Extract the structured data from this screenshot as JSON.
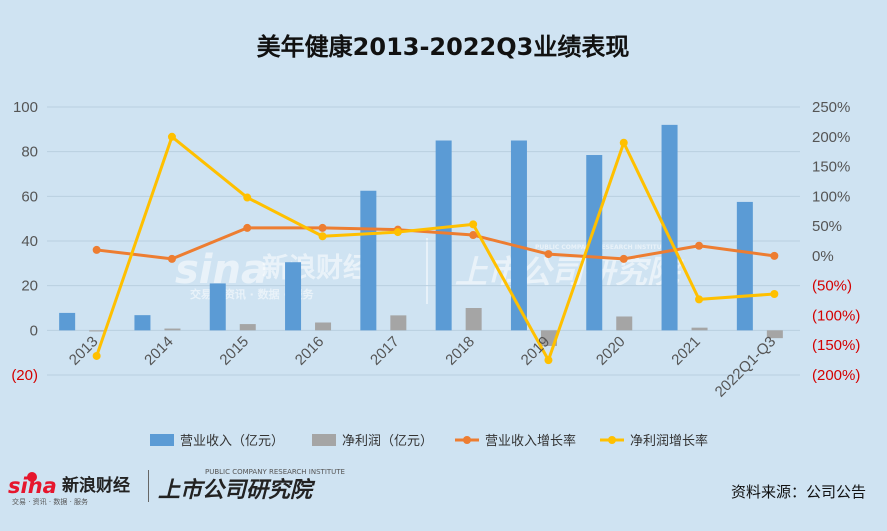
{
  "title": "美年健康2013-2022Q3业绩表现",
  "source": "资料来源：公司公告",
  "watermark": {
    "sina_cn": "新浪财经",
    "sina_sub": "交易 · 资讯 · 数据 · 服务",
    "research": "上市公司研究院",
    "research_en": "PUBLIC COMPANY RESEARCH INSTITUTE"
  },
  "colors": {
    "background": "#cfe3f2",
    "revenue": "#5b9bd5",
    "profit": "#a5a5a5",
    "revenue_growth": "#ed7d31",
    "profit_growth": "#ffc000",
    "negative_tick": "#d40000"
  },
  "chart_data": {
    "type": "bar",
    "categories": [
      "2013",
      "2014",
      "2015",
      "2016",
      "2017",
      "2018",
      "2019",
      "2020",
      "2021",
      "2022Q1-Q3"
    ],
    "left_axis": {
      "ylim": [
        -20,
        100
      ],
      "ticks": [
        -20,
        0,
        20,
        40,
        60,
        80,
        100
      ],
      "tick_labels": [
        "(20)",
        "0",
        "20",
        "40",
        "60",
        "80",
        "100"
      ]
    },
    "right_axis": {
      "ylim": [
        -200,
        250
      ],
      "ticks": [
        -200,
        -150,
        -100,
        -50,
        0,
        50,
        100,
        150,
        200,
        250
      ],
      "tick_labels": [
        "(200%)",
        "(150%)",
        "(100%)",
        "(50%)",
        "0%",
        "50%",
        "100%",
        "150%",
        "200%",
        "250%"
      ]
    },
    "grid": true,
    "legend_position": "bottom",
    "series": [
      {
        "name": "营业收入（亿元）",
        "type": "bar",
        "axis": "left",
        "color": "#5b9bd5",
        "values": [
          7.8,
          6.8,
          21,
          30.5,
          62.5,
          85,
          85,
          78.5,
          92,
          57.5
        ]
      },
      {
        "name": "净利润（亿元）",
        "type": "bar",
        "axis": "left",
        "color": "#a5a5a5",
        "values": [
          -0.5,
          0.8,
          2.8,
          3.5,
          6.7,
          10,
          -7,
          6.2,
          1.2,
          -3.5
        ]
      },
      {
        "name": "营业收入增长率",
        "type": "line",
        "axis": "right",
        "color": "#ed7d31",
        "values": [
          10,
          -5,
          47,
          47,
          44,
          35,
          3,
          -5,
          17,
          0
        ]
      },
      {
        "name": "净利润增长率",
        "type": "line",
        "axis": "right",
        "color": "#ffc000",
        "values": [
          -168,
          200,
          98,
          33,
          40,
          53,
          -175,
          190,
          -73,
          -64
        ]
      }
    ]
  }
}
